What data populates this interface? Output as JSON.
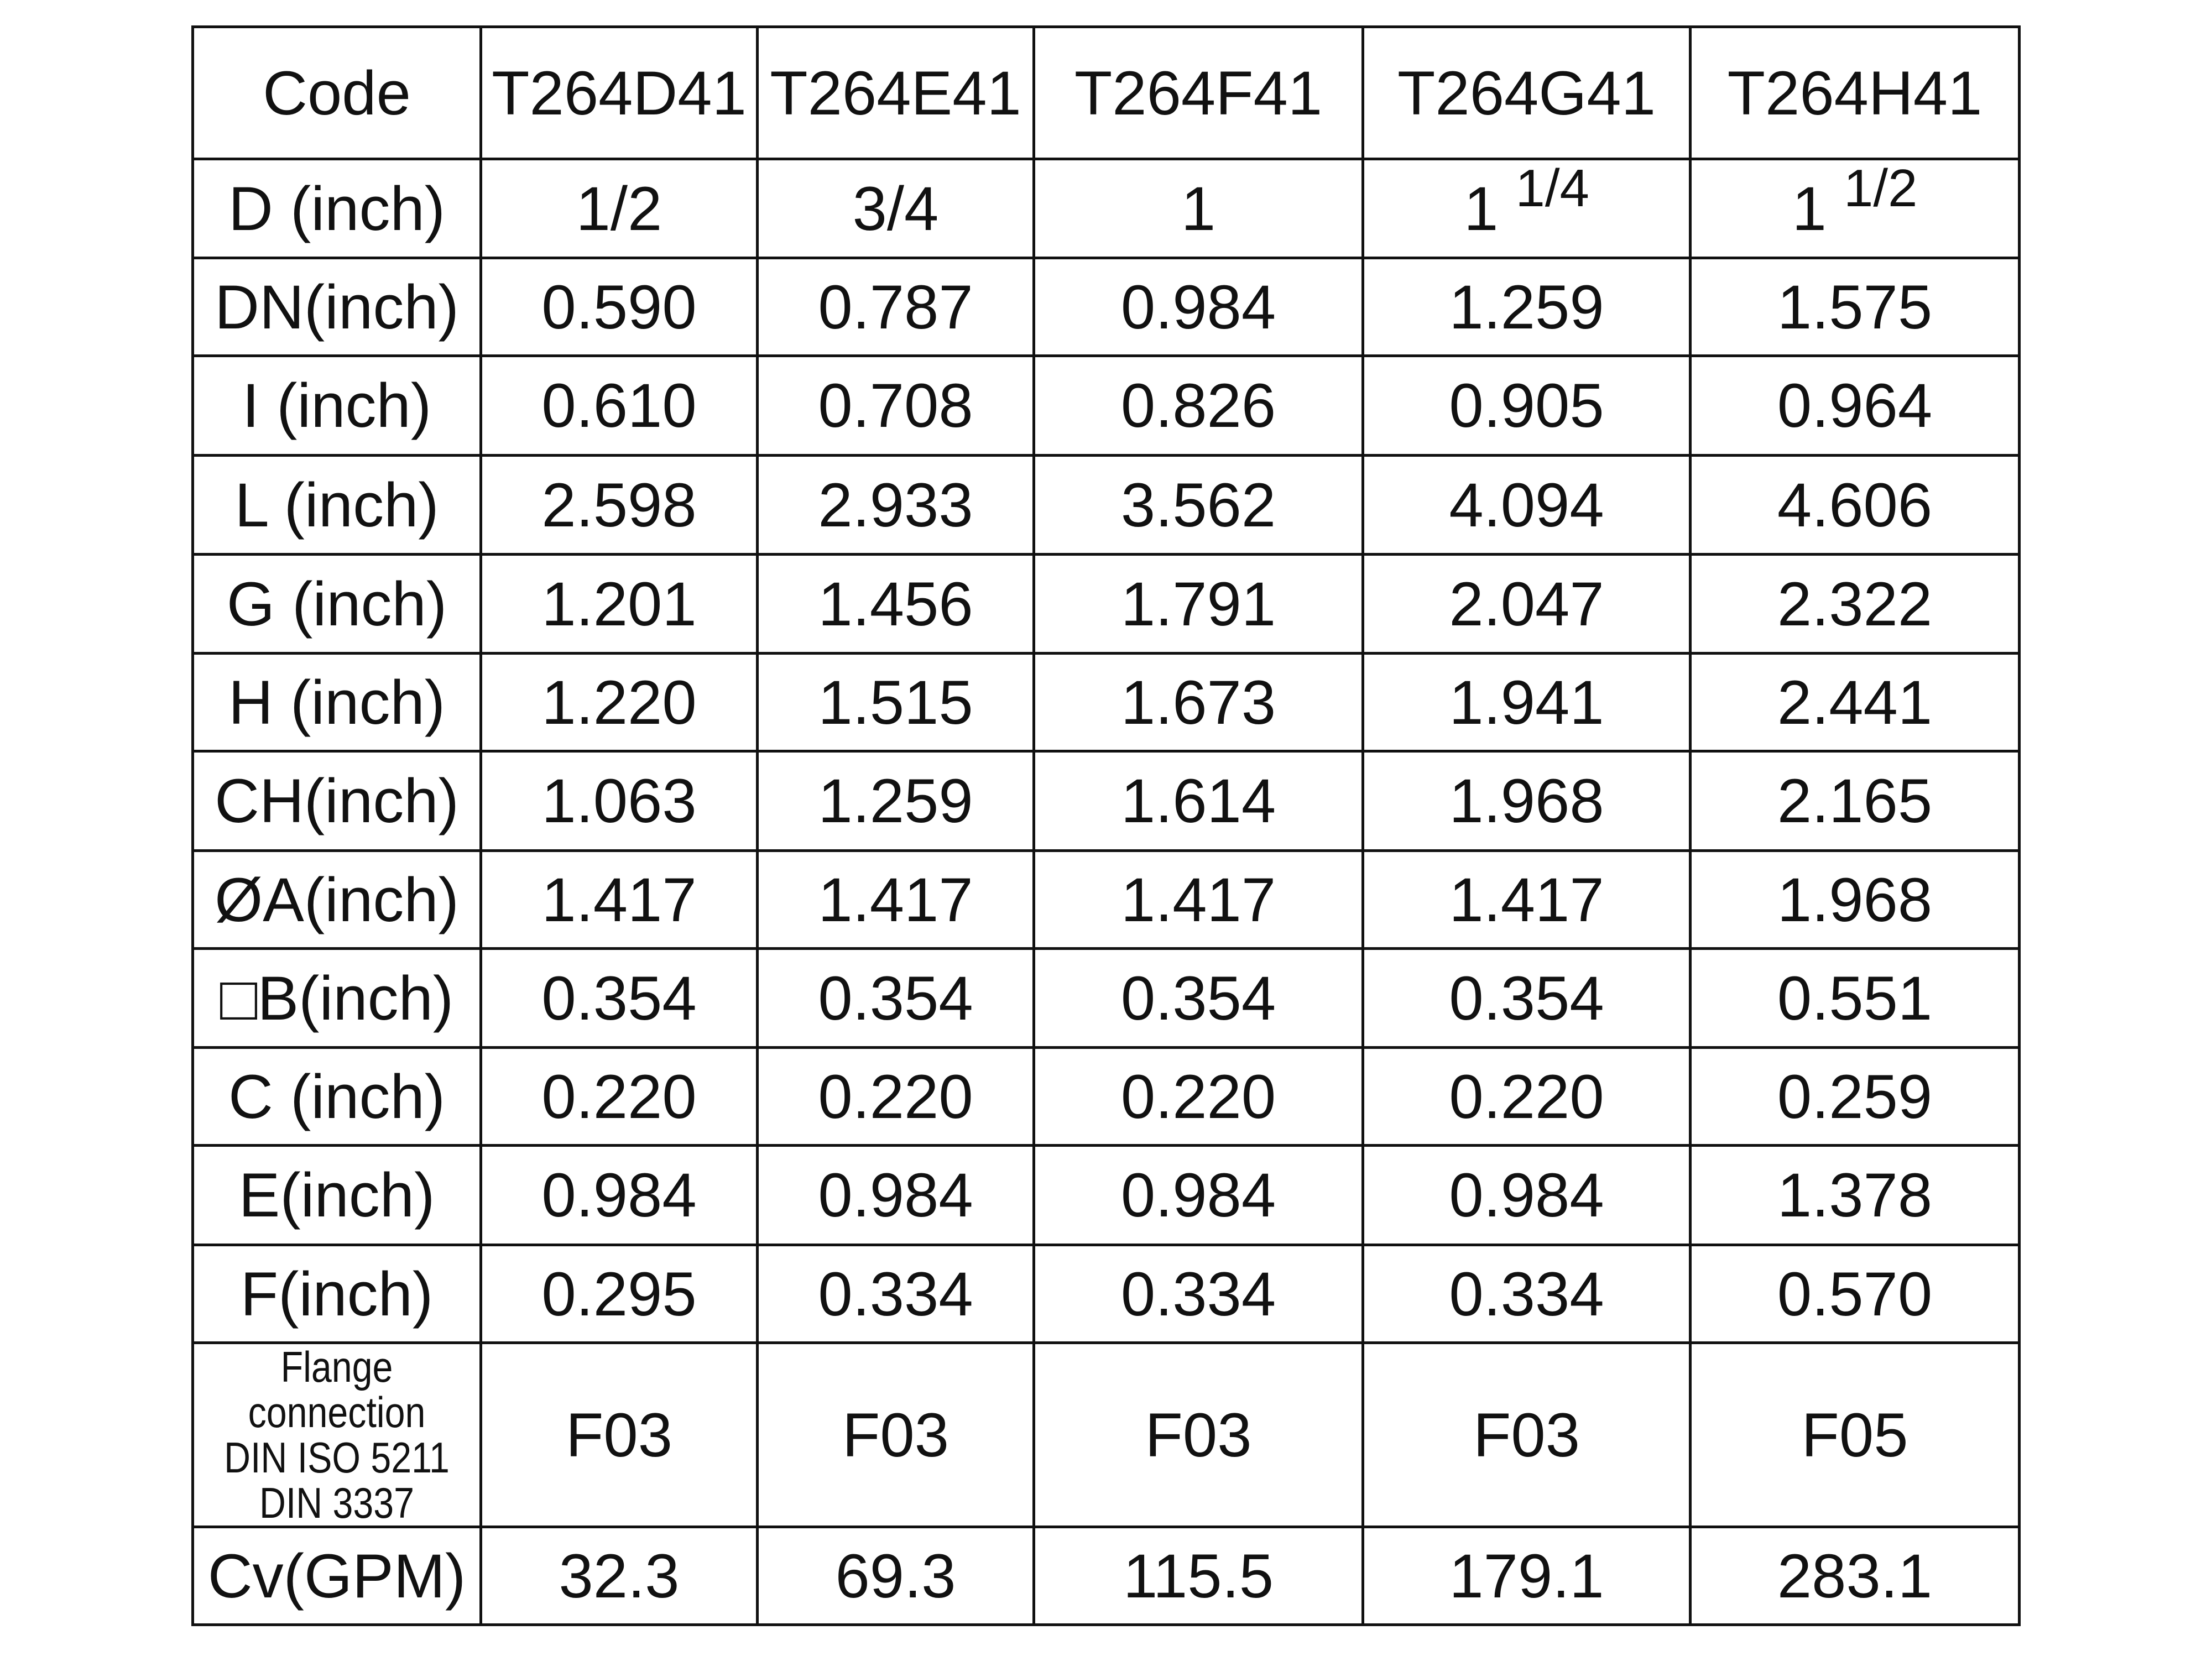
{
  "table": {
    "header": [
      "Code",
      "T264D41",
      "T264E41",
      "T264F41",
      "T264G41",
      "T264H41"
    ],
    "rows": [
      [
        "D (inch)",
        "1/2",
        "3/4",
        "1",
        {
          "whole": "1",
          "sup": "1/4"
        },
        {
          "whole": "1",
          "sup": "1/2"
        }
      ],
      [
        "DN(inch)",
        "0.590",
        "0.787",
        "0.984",
        "1.259",
        "1.575"
      ],
      [
        "I (inch)",
        "0.610",
        "0.708",
        "0.826",
        "0.905",
        "0.964"
      ],
      [
        "L (inch)",
        "2.598",
        "2.933",
        "3.562",
        "4.094",
        "4.606"
      ],
      [
        "G (inch)",
        "1.201",
        "1.456",
        "1.791",
        "2.047",
        "2.322"
      ],
      [
        "H (inch)",
        "1.220",
        "1.515",
        "1.673",
        "1.941",
        "2.441"
      ],
      [
        "CH(inch)",
        "1.063",
        "1.259",
        "1.614",
        "1.968",
        "2.165"
      ],
      [
        "ØA(inch)",
        "1.417",
        "1.417",
        "1.417",
        "1.417",
        "1.968"
      ],
      [
        "□B(inch)",
        "0.354",
        "0.354",
        "0.354",
        "0.354",
        "0.551"
      ],
      [
        "C (inch)",
        "0.220",
        "0.220",
        "0.220",
        "0.220",
        "0.259"
      ],
      [
        "E(inch)",
        "0.984",
        "0.984",
        "0.984",
        "0.984",
        "1.378"
      ],
      [
        "F(inch)",
        "0.295",
        "0.334",
        "0.334",
        "0.334",
        "0.570"
      ],
      [
        [
          "Flange",
          "connection",
          "DIN ISO 5211",
          "DIN 3337"
        ],
        "F03",
        "F03",
        "F03",
        "F03",
        "F05"
      ],
      [
        "Cv(GPM)",
        "32.3",
        "69.3",
        "115.5",
        "179.1",
        "283.1"
      ]
    ]
  }
}
